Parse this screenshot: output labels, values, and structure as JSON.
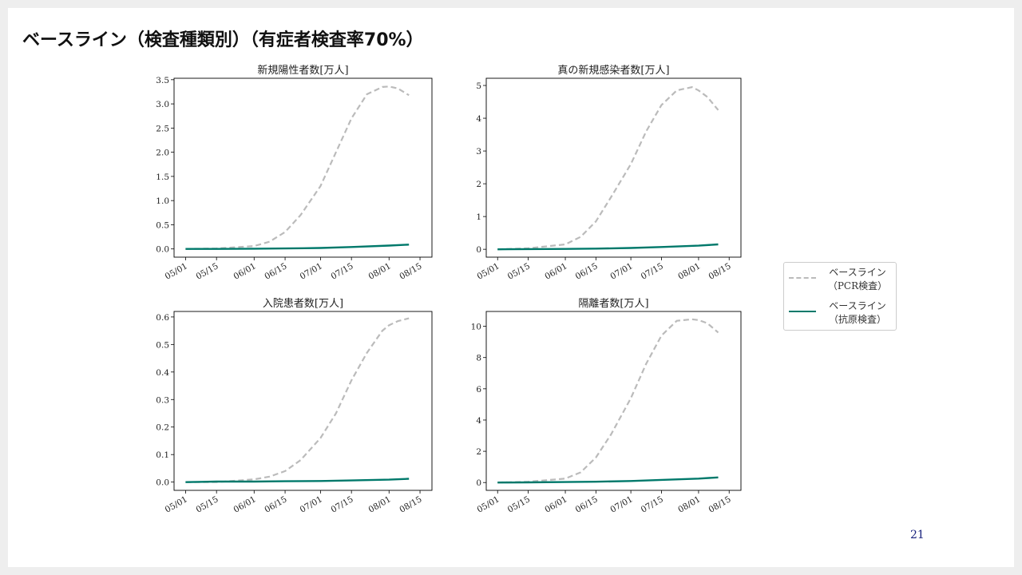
{
  "slide": {
    "title": "ベースライン（検査種類別）（有症者検査率70%）",
    "page_number": "21"
  },
  "legend": {
    "items": [
      {
        "line1": "ベースライン",
        "line2": "（PCR検査）",
        "color": "#bbbbbb",
        "style": "dashed"
      },
      {
        "line1": "ベースライン",
        "line2": "（抗原検査）",
        "color": "#00796b",
        "style": "solid"
      }
    ]
  },
  "chart_data": [
    {
      "type": "line",
      "title": "新規陽性者数[万人]",
      "xlabel": "",
      "ylabel": "",
      "x_ticks": [
        "05/01",
        "05/15",
        "06/01",
        "06/15",
        "07/01",
        "07/15",
        "08/01",
        "08/15"
      ],
      "ylim": [
        -0.17,
        3.53
      ],
      "y_ticks": [
        "0.0",
        "0.5",
        "1.0",
        "1.5",
        "2.0",
        "2.5",
        "3.0",
        "3.5"
      ],
      "y_tick_values": [
        0,
        0.5,
        1.0,
        1.5,
        2.0,
        2.5,
        3.0,
        3.5
      ],
      "series": [
        {
          "name": "ベースライン（PCR検査）",
          "style": "dashed",
          "color": "#bbbbbb",
          "x": [
            "05/01",
            "05/15",
            "06/01",
            "06/08",
            "06/15",
            "06/22",
            "07/01",
            "07/08",
            "07/15",
            "07/22",
            "07/29",
            "08/01",
            "08/05",
            "08/10"
          ],
          "values": [
            0.0,
            0.01,
            0.06,
            0.15,
            0.35,
            0.7,
            1.3,
            2.0,
            2.7,
            3.2,
            3.35,
            3.36,
            3.32,
            3.18
          ]
        },
        {
          "name": "ベースライン（抗原検査）",
          "style": "solid",
          "color": "#00796b",
          "x": [
            "05/01",
            "05/15",
            "06/01",
            "06/15",
            "07/01",
            "07/15",
            "08/01",
            "08/10"
          ],
          "values": [
            0.0,
            0.0,
            0.005,
            0.01,
            0.02,
            0.04,
            0.07,
            0.09
          ]
        }
      ]
    },
    {
      "type": "line",
      "title": "真の新規感染者数[万人]",
      "xlabel": "",
      "ylabel": "",
      "x_ticks": [
        "05/01",
        "05/15",
        "06/01",
        "06/15",
        "07/01",
        "07/15",
        "08/01",
        "08/15"
      ],
      "ylim": [
        -0.24,
        5.22
      ],
      "y_ticks": [
        "0",
        "1",
        "2",
        "3",
        "4",
        "5"
      ],
      "y_tick_values": [
        0,
        1,
        2,
        3,
        4,
        5
      ],
      "series": [
        {
          "name": "ベースライン（PCR検査）",
          "style": "dashed",
          "color": "#bbbbbb",
          "x": [
            "05/01",
            "05/15",
            "06/01",
            "06/08",
            "06/15",
            "06/22",
            "07/01",
            "07/08",
            "07/15",
            "07/22",
            "07/29",
            "08/01",
            "08/05",
            "08/10"
          ],
          "values": [
            0.0,
            0.03,
            0.15,
            0.38,
            0.85,
            1.6,
            2.6,
            3.6,
            4.4,
            4.85,
            4.95,
            4.85,
            4.65,
            4.25
          ]
        },
        {
          "name": "ベースライン（抗原検査）",
          "style": "solid",
          "color": "#00796b",
          "x": [
            "05/01",
            "05/15",
            "06/01",
            "06/15",
            "07/01",
            "07/15",
            "08/01",
            "08/10"
          ],
          "values": [
            0.0,
            0.005,
            0.01,
            0.02,
            0.04,
            0.07,
            0.11,
            0.15
          ]
        }
      ]
    },
    {
      "type": "line",
      "title": "入院患者数[万人]",
      "xlabel": "",
      "ylabel": "",
      "x_ticks": [
        "05/01",
        "05/15",
        "06/01",
        "06/15",
        "07/01",
        "07/15",
        "08/01",
        "08/15"
      ],
      "ylim": [
        -0.03,
        0.62
      ],
      "y_ticks": [
        "0.0",
        "0.1",
        "0.2",
        "0.3",
        "0.4",
        "0.5",
        "0.6"
      ],
      "y_tick_values": [
        0,
        0.1,
        0.2,
        0.3,
        0.4,
        0.5,
        0.6
      ],
      "series": [
        {
          "name": "ベースライン（PCR検査）",
          "style": "dashed",
          "color": "#bbbbbb",
          "x": [
            "05/01",
            "05/15",
            "06/01",
            "06/08",
            "06/15",
            "06/22",
            "07/01",
            "07/08",
            "07/15",
            "07/22",
            "07/29",
            "08/01",
            "08/05",
            "08/10"
          ],
          "values": [
            0.0,
            0.0,
            0.01,
            0.02,
            0.04,
            0.08,
            0.16,
            0.25,
            0.37,
            0.47,
            0.55,
            0.57,
            0.585,
            0.595
          ]
        },
        {
          "name": "ベースライン（抗原検査）",
          "style": "solid",
          "color": "#00796b",
          "x": [
            "05/01",
            "05/15",
            "06/01",
            "06/15",
            "07/01",
            "07/15",
            "08/01",
            "08/10"
          ],
          "values": [
            0.0,
            0.002,
            0.002,
            0.003,
            0.004,
            0.006,
            0.009,
            0.012
          ]
        }
      ]
    },
    {
      "type": "line",
      "title": "隔離者数[万人]",
      "xlabel": "",
      "ylabel": "",
      "x_ticks": [
        "05/01",
        "05/15",
        "06/01",
        "06/15",
        "07/01",
        "07/15",
        "08/01",
        "08/15"
      ],
      "ylim": [
        -0.5,
        10.95
      ],
      "y_ticks": [
        "0",
        "2",
        "4",
        "6",
        "8",
        "10"
      ],
      "y_tick_values": [
        0,
        2,
        4,
        6,
        8,
        10
      ],
      "series": [
        {
          "name": "ベースライン（PCR検査）",
          "style": "dashed",
          "color": "#bbbbbb",
          "x": [
            "05/01",
            "05/15",
            "06/01",
            "06/08",
            "06/15",
            "06/22",
            "07/01",
            "07/08",
            "07/15",
            "07/22",
            "07/29",
            "08/01",
            "08/05",
            "08/10"
          ],
          "values": [
            0.0,
            0.05,
            0.25,
            0.65,
            1.6,
            3.1,
            5.4,
            7.6,
            9.4,
            10.35,
            10.45,
            10.4,
            10.2,
            9.6
          ]
        },
        {
          "name": "ベースライン（抗原検査）",
          "style": "solid",
          "color": "#00796b",
          "x": [
            "05/01",
            "05/15",
            "06/01",
            "06/15",
            "07/01",
            "07/15",
            "08/01",
            "08/10"
          ],
          "values": [
            0.0,
            0.01,
            0.03,
            0.05,
            0.1,
            0.17,
            0.25,
            0.33
          ]
        }
      ]
    }
  ]
}
